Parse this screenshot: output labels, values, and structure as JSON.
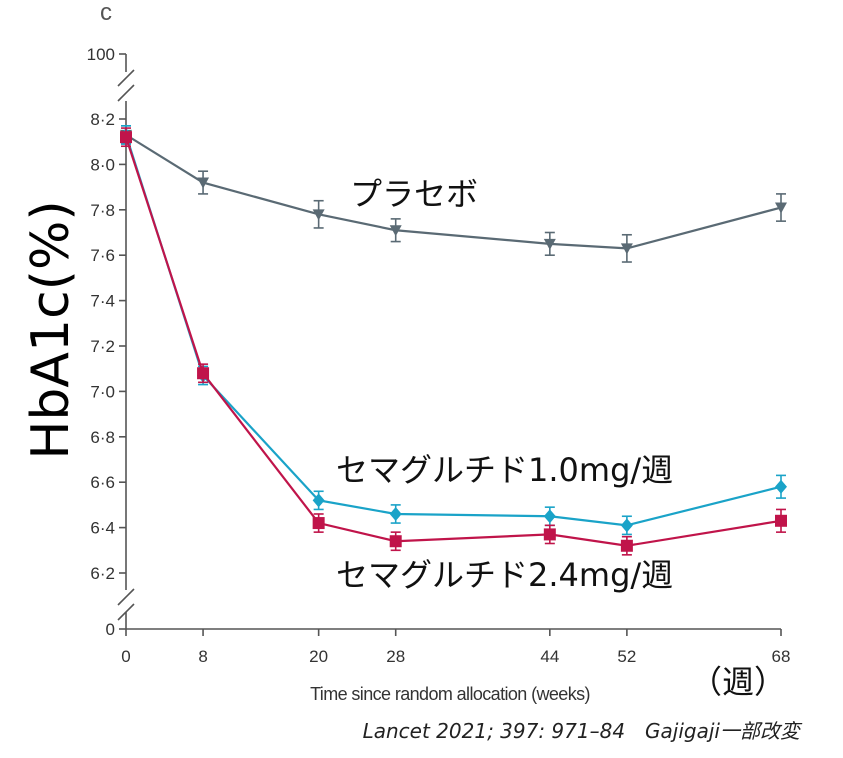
{
  "panel_letter": "c",
  "citation": "Lancet 2021; 397: 971–84　Gajigaji一部改変",
  "chart_data": {
    "type": "line",
    "ylabel": "HbA1c(%)",
    "xlabel": "Time since random allocation (weeks)",
    "x_unit_label": "（週）",
    "x": [
      0,
      8,
      20,
      28,
      44,
      52,
      68
    ],
    "x_ticks": [
      "0",
      "8",
      "20",
      "28",
      "44",
      "52",
      "68"
    ],
    "y_axis_break": true,
    "y_ticks_upper": [
      "100"
    ],
    "y_ticks_main": [
      "8·2",
      "8·0",
      "7·8",
      "7·6",
      "7·4",
      "7·2",
      "7·0",
      "6·8",
      "6·6",
      "6·4",
      "6·2"
    ],
    "y_ticks_lower": [
      "0"
    ],
    "ylim_main": [
      6.2,
      8.2
    ],
    "grid": false,
    "legend": "inline labels",
    "series": [
      {
        "name": "プラセボ",
        "color": "#5a6a74",
        "marker": "triangle-down",
        "values": [
          8.13,
          7.92,
          7.78,
          7.71,
          7.65,
          7.63,
          7.81
        ],
        "err": [
          0.04,
          0.05,
          0.06,
          0.05,
          0.05,
          0.06,
          0.06
        ]
      },
      {
        "name": "セマグルチド1.0mg/週",
        "color": "#1aa3c8",
        "marker": "diamond",
        "values": [
          8.13,
          7.07,
          6.52,
          6.46,
          6.45,
          6.41,
          6.58
        ],
        "err": [
          0.04,
          0.04,
          0.04,
          0.04,
          0.04,
          0.04,
          0.05
        ]
      },
      {
        "name": "セマグルチド2.4mg/週",
        "color": "#c0144a",
        "marker": "square",
        "values": [
          8.12,
          7.08,
          6.42,
          6.34,
          6.37,
          6.32,
          6.43
        ],
        "err": [
          0.04,
          0.04,
          0.04,
          0.04,
          0.04,
          0.04,
          0.05
        ]
      }
    ]
  }
}
